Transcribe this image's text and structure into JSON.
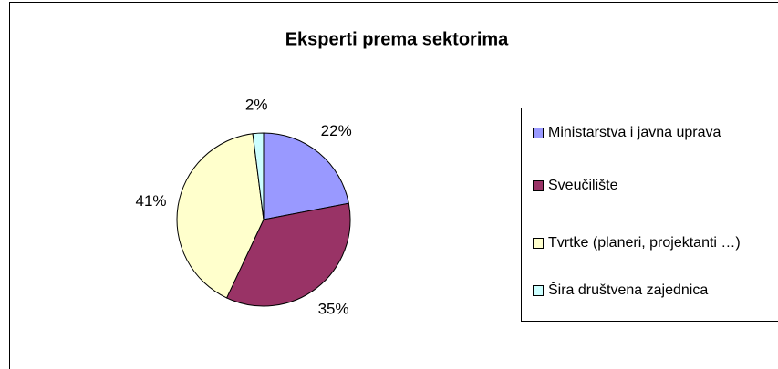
{
  "chart_data": {
    "type": "pie",
    "title": "Eksperti prema sektorima",
    "categories": [
      "Ministarstva i javna uprava",
      "Sveučilište",
      "Tvrtke (planeri, projektanti …)",
      "Šira društvena zajednica"
    ],
    "values": [
      22,
      35,
      41,
      2
    ],
    "value_labels": [
      "22%",
      "35%",
      "41%",
      "2%"
    ],
    "colors": [
      "#9999ff",
      "#993366",
      "#ffffcc",
      "#ccffff"
    ]
  }
}
